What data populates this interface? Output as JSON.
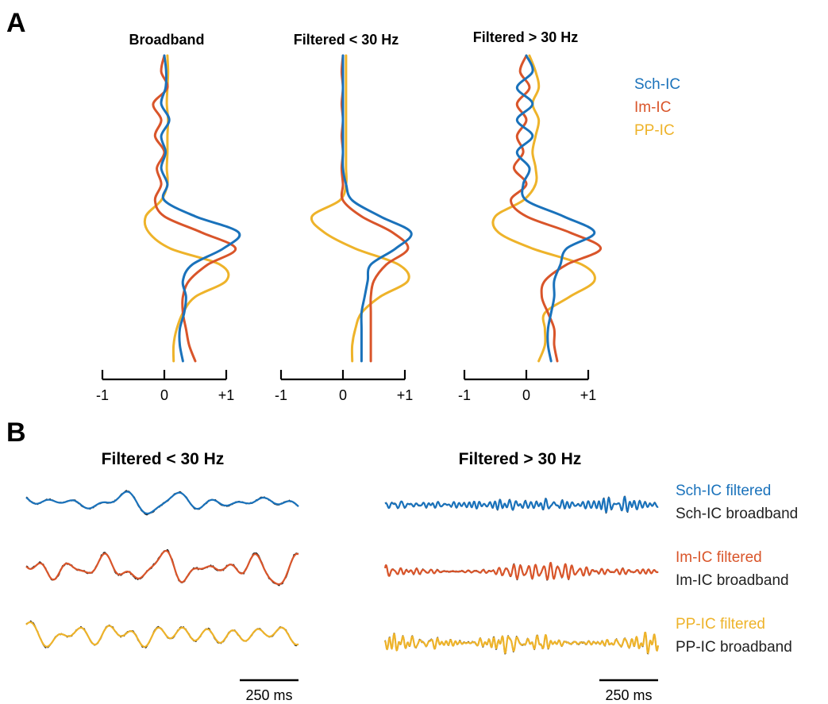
{
  "panel_labels": [
    "A",
    "B"
  ],
  "colors": {
    "sch": "#1a72bb",
    "im": "#d9552a",
    "pp": "#eeb32a",
    "broadband": "#222222"
  },
  "legend_a": [
    {
      "label": "Sch-IC",
      "color": "#1a72bb"
    },
    {
      "label": "Im-IC",
      "color": "#d9552a"
    },
    {
      "label": "PP-IC",
      "color": "#eeb32a"
    }
  ],
  "legend_b": [
    {
      "label": "Sch-IC filtered",
      "color": "#1a72bb"
    },
    {
      "label": "Sch-IC broadband",
      "color": "#222222"
    },
    {
      "label": "Im-IC filtered",
      "color": "#d9552a"
    },
    {
      "label": "Im-IC broadband",
      "color": "#222222"
    },
    {
      "label": "PP-IC filtered",
      "color": "#eeb32a"
    },
    {
      "label": "PP-IC broadband",
      "color": "#222222"
    }
  ],
  "scalebar": {
    "label": "250 ms",
    "duration_ms": 250
  },
  "chart_data": [
    {
      "type": "line",
      "panel": "A",
      "title": "Broadband",
      "orientation": "vertical-profile",
      "xlim": [
        -1,
        1
      ],
      "xticks": [
        "-1",
        "0",
        "+1"
      ],
      "series": [
        {
          "name": "Sch-IC",
          "color": "#1a72bb",
          "values": [
            0.0,
            0.03,
            0.02,
            -0.05,
            0.08,
            -0.05,
            0.02,
            -0.05,
            0.05,
            0.0,
            0.5,
            1.2,
            0.95,
            0.45,
            0.3,
            0.35,
            0.32,
            0.25,
            0.25,
            0.3
          ]
        },
        {
          "name": "Im-IC",
          "color": "#d9552a",
          "values": [
            0.0,
            -0.05,
            0.05,
            -0.18,
            -0.05,
            -0.15,
            0.0,
            -0.12,
            -0.05,
            -0.15,
            0.0,
            0.6,
            1.15,
            0.7,
            0.4,
            0.3,
            0.3,
            0.35,
            0.4,
            0.5
          ]
        },
        {
          "name": "PP-IC",
          "color": "#eeb32a",
          "values": [
            0.05,
            0.06,
            0.05,
            0.04,
            0.06,
            0.05,
            0.05,
            0.04,
            0.05,
            -0.05,
            -0.3,
            -0.25,
            0.1,
            0.9,
            1.0,
            0.5,
            0.3,
            0.2,
            0.15,
            0.15
          ]
        }
      ]
    },
    {
      "type": "line",
      "panel": "A",
      "title": "Filtered < 30 Hz",
      "orientation": "vertical-profile",
      "xlim": [
        -1,
        1
      ],
      "xticks": [
        "-1",
        "0",
        "+1"
      ],
      "series": [
        {
          "name": "Sch-IC",
          "color": "#1a72bb",
          "values": [
            0.0,
            0.0,
            0.0,
            0.0,
            0.0,
            0.0,
            0.0,
            0.0,
            0.05,
            0.15,
            0.6,
            1.1,
            0.85,
            0.45,
            0.4,
            0.35,
            0.3,
            0.3,
            0.3,
            0.3
          ]
        },
        {
          "name": "Im-IC",
          "color": "#d9552a",
          "values": [
            0.0,
            -0.02,
            0.0,
            -0.02,
            0.0,
            -0.02,
            0.0,
            -0.02,
            0.0,
            0.0,
            0.3,
            0.8,
            1.05,
            0.7,
            0.5,
            0.45,
            0.45,
            0.45,
            0.45,
            0.45
          ]
        },
        {
          "name": "PP-IC",
          "color": "#eeb32a",
          "values": [
            0.05,
            0.05,
            0.05,
            0.05,
            0.05,
            0.05,
            0.05,
            0.05,
            0.05,
            -0.05,
            -0.5,
            -0.3,
            0.2,
            0.9,
            1.05,
            0.6,
            0.3,
            0.2,
            0.15,
            0.15
          ]
        }
      ]
    },
    {
      "type": "line",
      "panel": "A",
      "title": "Filtered > 30 Hz",
      "orientation": "vertical-profile",
      "xlim": [
        -1,
        1
      ],
      "xticks": [
        "-1",
        "0",
        "+1"
      ],
      "series": [
        {
          "name": "Sch-IC",
          "color": "#1a72bb",
          "values": [
            0.0,
            0.1,
            -0.15,
            0.1,
            -0.15,
            0.1,
            -0.15,
            0.05,
            -0.05,
            0.0,
            0.6,
            1.1,
            0.65,
            0.55,
            0.45,
            0.45,
            0.4,
            0.35,
            0.35,
            0.4
          ]
        },
        {
          "name": "Im-IC",
          "color": "#d9552a",
          "values": [
            0.0,
            -0.1,
            0.05,
            -0.15,
            0.0,
            -0.15,
            -0.05,
            -0.2,
            0.0,
            -0.25,
            0.0,
            0.7,
            1.2,
            0.65,
            0.3,
            0.25,
            0.35,
            0.45,
            0.45,
            0.5
          ]
        },
        {
          "name": "PP-IC",
          "color": "#eeb32a",
          "values": [
            0.05,
            0.15,
            0.2,
            0.1,
            0.2,
            0.15,
            0.1,
            0.15,
            0.15,
            -0.05,
            -0.5,
            -0.45,
            0.1,
            0.9,
            1.1,
            0.7,
            0.3,
            0.3,
            0.3,
            0.2
          ]
        }
      ]
    },
    {
      "type": "line",
      "panel": "B",
      "title": "Filtered < 30 Hz",
      "x_unit": "ms",
      "scalebar_ms": 250,
      "series": [
        {
          "name": "Sch-IC filtered",
          "color": "#1a72bb",
          "seed": 11,
          "amplitude": 14,
          "frequency": "low"
        },
        {
          "name": "Sch-IC broadband",
          "color": "#222222",
          "seed": 11,
          "amplitude": 14,
          "frequency": "low"
        },
        {
          "name": "Im-IC filtered",
          "color": "#d9552a",
          "seed": 23,
          "amplitude": 22,
          "frequency": "low"
        },
        {
          "name": "Im-IC broadband",
          "color": "#222222",
          "seed": 23,
          "amplitude": 22,
          "frequency": "low"
        },
        {
          "name": "PP-IC filtered",
          "color": "#eeb32a",
          "seed": 37,
          "amplitude": 16,
          "frequency": "low"
        },
        {
          "name": "PP-IC broadband",
          "color": "#222222",
          "seed": 37,
          "amplitude": 16,
          "frequency": "low"
        }
      ]
    },
    {
      "type": "line",
      "panel": "B",
      "title": "Filtered > 30 Hz",
      "x_unit": "ms",
      "scalebar_ms": 250,
      "series": [
        {
          "name": "Sch-IC filtered",
          "color": "#1a72bb",
          "seed": 41,
          "amplitude": 10,
          "frequency": "high"
        },
        {
          "name": "Sch-IC broadband",
          "color": "#222222",
          "seed": 41,
          "amplitude": 10,
          "frequency": "high"
        },
        {
          "name": "Im-IC filtered",
          "color": "#d9552a",
          "seed": 53,
          "amplitude": 11,
          "frequency": "high"
        },
        {
          "name": "Im-IC broadband",
          "color": "#222222",
          "seed": 53,
          "amplitude": 11,
          "frequency": "high"
        },
        {
          "name": "PP-IC filtered",
          "color": "#eeb32a",
          "seed": 67,
          "amplitude": 13,
          "frequency": "high"
        },
        {
          "name": "PP-IC broadband",
          "color": "#222222",
          "seed": 67,
          "amplitude": 13,
          "frequency": "high"
        }
      ]
    }
  ]
}
